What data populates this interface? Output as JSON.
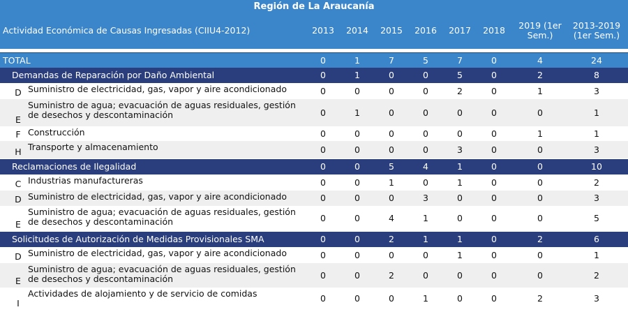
{
  "title": "Región de La Araucanía",
  "header": {
    "label": "Actividad Económica de Causas Ingresadas (CIIU4-2012)",
    "columns": [
      "2013",
      "2014",
      "2015",
      "2016",
      "2017",
      "2018",
      "2019 (1er Sem.)",
      "2013-2019 (1er Sem.)"
    ]
  },
  "total": {
    "label": "TOTAL",
    "values": [
      0,
      1,
      7,
      5,
      7,
      0,
      4,
      24
    ]
  },
  "groups": [
    {
      "label": "Demandas de Reparación por Daño Ambiental",
      "values": [
        0,
        1,
        0,
        0,
        5,
        0,
        2,
        8
      ],
      "items": [
        {
          "code": "D",
          "label": "Suministro de electricidad, gas, vapor y aire acondicionado",
          "values": [
            0,
            0,
            0,
            0,
            2,
            0,
            1,
            3
          ]
        },
        {
          "code": "E",
          "label": "Suministro de agua; evacuación de aguas residuales, gestión de desechos y descontaminación",
          "values": [
            0,
            1,
            0,
            0,
            0,
            0,
            0,
            1
          ]
        },
        {
          "code": "F",
          "label": "Construcción",
          "values": [
            0,
            0,
            0,
            0,
            0,
            0,
            1,
            1
          ]
        },
        {
          "code": "H",
          "label": "Transporte y almacenamiento",
          "values": [
            0,
            0,
            0,
            0,
            3,
            0,
            0,
            3
          ]
        }
      ]
    },
    {
      "label": "Reclamaciones de Ilegalidad",
      "values": [
        0,
        0,
        5,
        4,
        1,
        0,
        0,
        10
      ],
      "items": [
        {
          "code": "C",
          "label": "Industrias manufactureras",
          "values": [
            0,
            0,
            1,
            0,
            1,
            0,
            0,
            2
          ]
        },
        {
          "code": "D",
          "label": "Suministro de electricidad, gas, vapor y aire acondicionado",
          "values": [
            0,
            0,
            0,
            3,
            0,
            0,
            0,
            3
          ]
        },
        {
          "code": "E",
          "label": "Suministro de agua; evacuación de aguas residuales, gestión de desechos y descontaminación",
          "values": [
            0,
            0,
            4,
            1,
            0,
            0,
            0,
            5
          ]
        }
      ]
    },
    {
      "label": "Solicitudes de Autorización de Medidas Provisionales SMA",
      "values": [
        0,
        0,
        2,
        1,
        1,
        0,
        2,
        6
      ],
      "items": [
        {
          "code": "D",
          "label": "Suministro de electricidad, gas, vapor y aire acondicionado",
          "values": [
            0,
            0,
            0,
            0,
            1,
            0,
            0,
            1
          ]
        },
        {
          "code": "E",
          "label": "Suministro de agua; evacuación de aguas residuales, gestión de desechos y descontaminación",
          "values": [
            0,
            0,
            2,
            0,
            0,
            0,
            0,
            2
          ]
        },
        {
          "code": "I",
          "label": "Actividades de alojamiento y de servicio de comidas",
          "values": [
            0,
            0,
            0,
            1,
            0,
            0,
            2,
            3
          ]
        }
      ]
    }
  ]
}
